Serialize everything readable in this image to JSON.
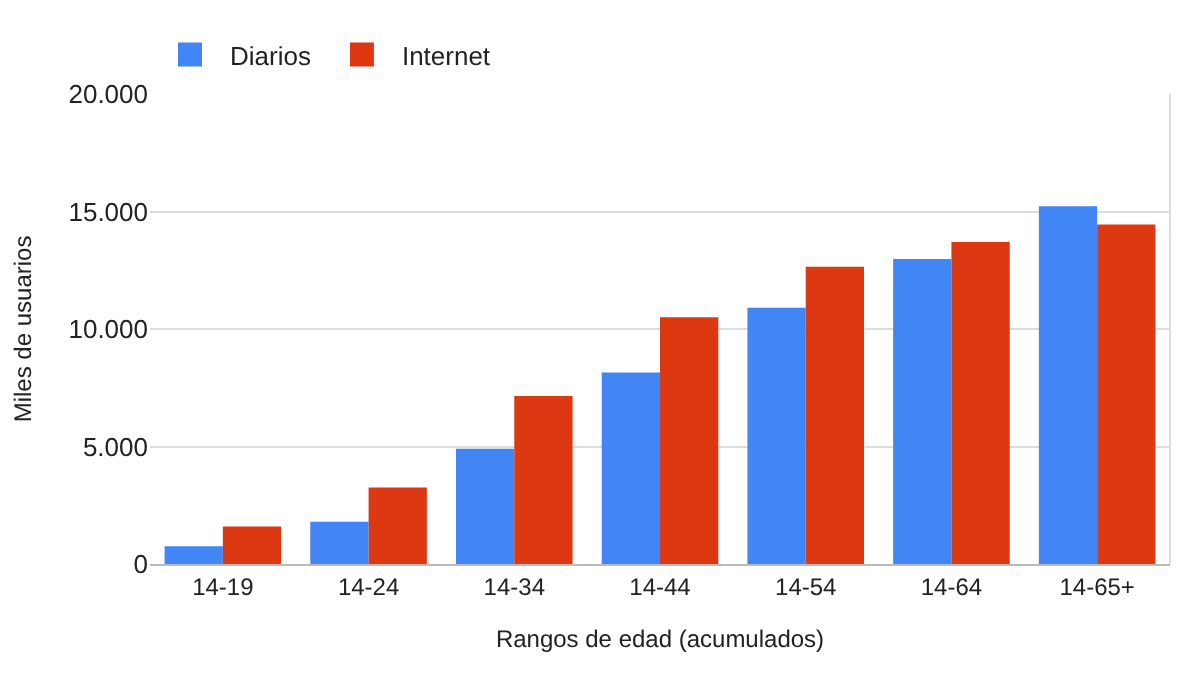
{
  "chart_data": {
    "type": "bar",
    "xlabel": "Rangos de edad (acumulados)",
    "ylabel": "Miles de usuarios",
    "categories": [
      "14-19",
      "14-24",
      "14-34",
      "14-44",
      "14-54",
      "14-64",
      "14-65+"
    ],
    "series": [
      {
        "name": "Diarios",
        "color": "#4285f4",
        "values": [
          760,
          1800,
          4900,
          8150,
          10900,
          12980,
          15220
        ]
      },
      {
        "name": "Internet",
        "color": "#dc3912",
        "values": [
          1600,
          3250,
          7150,
          10500,
          12650,
          13700,
          14450
        ]
      }
    ],
    "ylim": [
      0,
      20000
    ],
    "yticks": [
      {
        "value": 0,
        "label": "0"
      },
      {
        "value": 5000,
        "label": "5.000"
      },
      {
        "value": 10000,
        "label": "10.000"
      },
      {
        "value": 15000,
        "label": "15.000"
      },
      {
        "value": 20000,
        "label": "20.000"
      }
    ],
    "grid": "y",
    "legend": "top left"
  }
}
